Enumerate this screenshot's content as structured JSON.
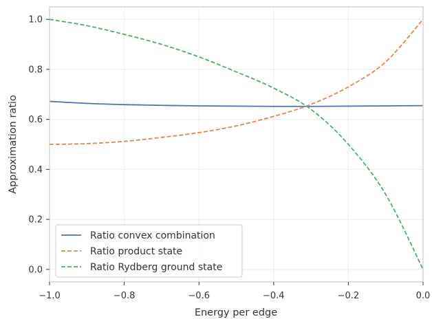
{
  "chart_data": {
    "type": "line",
    "title": "",
    "xlabel": "Energy per edge",
    "ylabel": "Approximation ratio",
    "xlim": [
      -1.0,
      0.0
    ],
    "ylim": [
      -0.05,
      1.05
    ],
    "xticks": [
      -1.0,
      -0.8,
      -0.6,
      -0.4,
      -0.2,
      0.0
    ],
    "xtick_labels": [
      "−1.0",
      "−0.8",
      "−0.6",
      "−0.4",
      "−0.2",
      "0.0"
    ],
    "yticks": [
      0.0,
      0.2,
      0.4,
      0.6,
      0.8,
      1.0
    ],
    "ytick_labels": [
      "0.0",
      "0.2",
      "0.4",
      "0.6",
      "0.8",
      "1.0"
    ],
    "grid": true,
    "legend_position": "lower-left",
    "x": [
      -1.0,
      -0.9,
      -0.8,
      -0.7,
      -0.6,
      -0.5,
      -0.4,
      -0.3,
      -0.2,
      -0.1,
      0.0
    ],
    "series": [
      {
        "name": "Ratio convex combination",
        "style": "solid",
        "color": "#4c72b0",
        "values": [
          0.672,
          0.664,
          0.659,
          0.656,
          0.654,
          0.653,
          0.652,
          0.652,
          0.653,
          0.654,
          0.655
        ]
      },
      {
        "name": "Ratio product state",
        "style": "dashed",
        "color": "#dd8452",
        "values": [
          0.5,
          0.503,
          0.512,
          0.528,
          0.547,
          0.574,
          0.612,
          0.66,
          0.73,
          0.83,
          1.0
        ]
      },
      {
        "name": "Ratio Rydberg ground state",
        "style": "dashed",
        "color": "#55a868",
        "values": [
          1.0,
          0.975,
          0.94,
          0.9,
          0.85,
          0.79,
          0.725,
          0.64,
          0.5,
          0.3,
          0.0
        ]
      }
    ]
  }
}
